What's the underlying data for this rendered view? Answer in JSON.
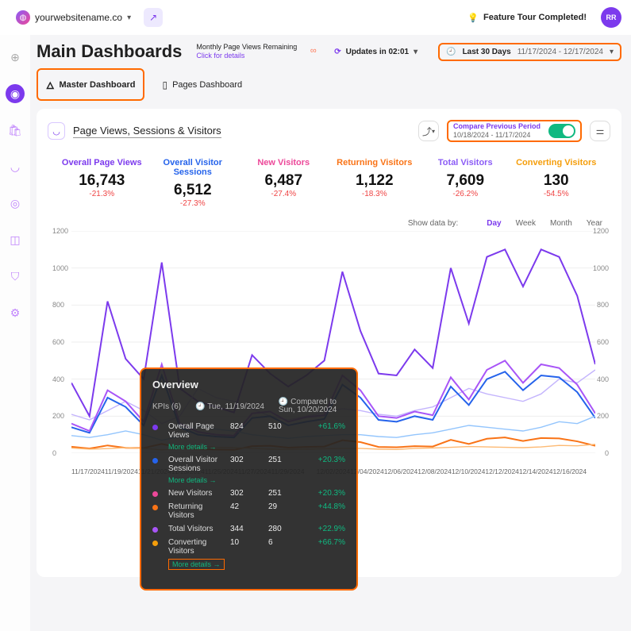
{
  "topbar": {
    "site": "yourwebsitename.co",
    "tour": "Feature Tour Completed!",
    "avatar": "RR"
  },
  "header": {
    "title": "Main Dashboards",
    "remaining_label": "Monthly Page Views Remaining",
    "click_for_details": "Click for details",
    "updates_in": "Updates in 02:01",
    "range_label": "Last 30 Days",
    "range_dates": "11/17/2024 - 12/17/2024"
  },
  "tabs": {
    "master": "Master Dashboard",
    "pages": "Pages Dashboard"
  },
  "panel": {
    "title": "Page Views, Sessions & Visitors",
    "compare_label": "Compare Previous Period",
    "compare_dates": "10/18/2024 - 11/17/2024"
  },
  "kpis": [
    {
      "label": "Overall Page Views",
      "value": "16,743",
      "change": "-21.3%",
      "color": "#7c3aed"
    },
    {
      "label": "Overall Visitor Sessions",
      "value": "6,512",
      "change": "-27.3%",
      "color": "#2563eb"
    },
    {
      "label": "New Visitors",
      "value": "6,487",
      "change": "-27.4%",
      "color": "#ec4899"
    },
    {
      "label": "Returning Visitors",
      "value": "1,122",
      "change": "-18.3%",
      "color": "#f97316"
    },
    {
      "label": "Total Visitors",
      "value": "7,609",
      "change": "-26.2%",
      "color": "#8b5cf6"
    },
    {
      "label": "Converting Visitors",
      "value": "130",
      "change": "-54.5%",
      "color": "#f59e0b"
    }
  ],
  "show_by": {
    "label": "Show data by:",
    "options": [
      "Day",
      "Week",
      "Month",
      "Year"
    ],
    "active": "Day"
  },
  "chart": {
    "ylim": [
      0,
      1200
    ],
    "ytick_step": 200,
    "y_ticks": [
      "0",
      "200",
      "400",
      "600",
      "800",
      "1000",
      "1200"
    ],
    "x_ticks": [
      "11/17/2024",
      "11/19/2024",
      "11/21/2024",
      "11/23/2024",
      "11/25/2024",
      "11/27/2024",
      "11/29/2024",
      "",
      "12/02/2024",
      "12/04/2024",
      "12/06/2024",
      "12/08/2024",
      "12/10/2024",
      "12/12/2024",
      "12/14/2024",
      "12/16/2024"
    ],
    "grid_color": "#eee",
    "series": [
      {
        "name": "Overall Page Views",
        "color": "#7c3aed",
        "width": 2,
        "points": [
          380,
          200,
          820,
          510,
          400,
          1030,
          350,
          280,
          250,
          220,
          530,
          430,
          360,
          420,
          500,
          980,
          660,
          430,
          420,
          560,
          460,
          1000,
          700,
          1060,
          1100,
          900,
          1100,
          1060,
          850,
          480
        ]
      },
      {
        "name": "Overall Page Views prev",
        "color": "#c4b5fd",
        "width": 1.4,
        "points": [
          210,
          180,
          230,
          280,
          230,
          160,
          200,
          350,
          300,
          280,
          240,
          200,
          180,
          200,
          220,
          240,
          230,
          210,
          200,
          230,
          250,
          300,
          350,
          320,
          300,
          280,
          320,
          400,
          380,
          450
        ]
      },
      {
        "name": "Overall Visitor Sessions",
        "color": "#2563eb",
        "width": 2,
        "points": [
          140,
          110,
          300,
          250,
          150,
          420,
          140,
          100,
          90,
          85,
          190,
          200,
          150,
          170,
          185,
          370,
          300,
          180,
          170,
          200,
          180,
          360,
          260,
          400,
          440,
          340,
          420,
          410,
          330,
          190
        ]
      },
      {
        "name": "Overall Visitor Sessions prev",
        "color": "#93c5fd",
        "width": 1.4,
        "points": [
          95,
          85,
          100,
          120,
          100,
          70,
          90,
          150,
          130,
          120,
          100,
          90,
          80,
          90,
          95,
          100,
          100,
          90,
          85,
          100,
          110,
          130,
          150,
          140,
          130,
          120,
          140,
          170,
          160,
          200
        ]
      },
      {
        "name": "Total Visitors",
        "color": "#a855f7",
        "width": 2,
        "points": [
          160,
          120,
          340,
          280,
          170,
          480,
          160,
          115,
          100,
          95,
          215,
          225,
          170,
          195,
          205,
          420,
          340,
          200,
          190,
          225,
          205,
          410,
          290,
          450,
          500,
          380,
          480,
          460,
          370,
          215
        ]
      },
      {
        "name": "Returning Visitors",
        "color": "#f97316",
        "width": 2,
        "points": [
          35,
          25,
          42,
          29,
          28,
          50,
          30,
          22,
          20,
          18,
          38,
          40,
          30,
          34,
          36,
          70,
          60,
          34,
          32,
          38,
          36,
          72,
          50,
          78,
          85,
          66,
          82,
          80,
          64,
          40
        ]
      },
      {
        "name": "Returning Visitors prev",
        "color": "#fdba74",
        "width": 1.4,
        "points": [
          28,
          22,
          25,
          30,
          26,
          18,
          24,
          38,
          32,
          30,
          26,
          22,
          20,
          22,
          24,
          26,
          26,
          22,
          20,
          26,
          28,
          32,
          36,
          34,
          32,
          30,
          34,
          42,
          40,
          48
        ]
      }
    ]
  },
  "tooltip": {
    "title": "Overview",
    "kpi_count": "KPIs  (6)",
    "date_current": "Tue, 11/19/2024",
    "compared_label": "Compared to",
    "date_prev": "Sun, 10/20/2024",
    "more": "More details →",
    "rows": [
      {
        "dot": "#7c3aed",
        "name": "Overall Page Views",
        "v1": "824",
        "v2": "510",
        "pct": "+61.6%",
        "more": true
      },
      {
        "dot": "#2563eb",
        "name": "Overall Visitor Sessions",
        "v1": "302",
        "v2": "251",
        "pct": "+20.3%",
        "more": true
      },
      {
        "dot": "#ec4899",
        "name": "New Visitors",
        "v1": "302",
        "v2": "251",
        "pct": "+20.3%"
      },
      {
        "dot": "#f97316",
        "name": "Returning Visitors",
        "v1": "42",
        "v2": "29",
        "pct": "+44.8%"
      },
      {
        "dot": "#a855f7",
        "name": "Total Visitors",
        "v1": "344",
        "v2": "280",
        "pct": "+22.9%"
      },
      {
        "dot": "#f59e0b",
        "name": "Converting Visitors",
        "v1": "10",
        "v2": "6",
        "pct": "+66.7%",
        "more_boxed": true
      }
    ]
  }
}
